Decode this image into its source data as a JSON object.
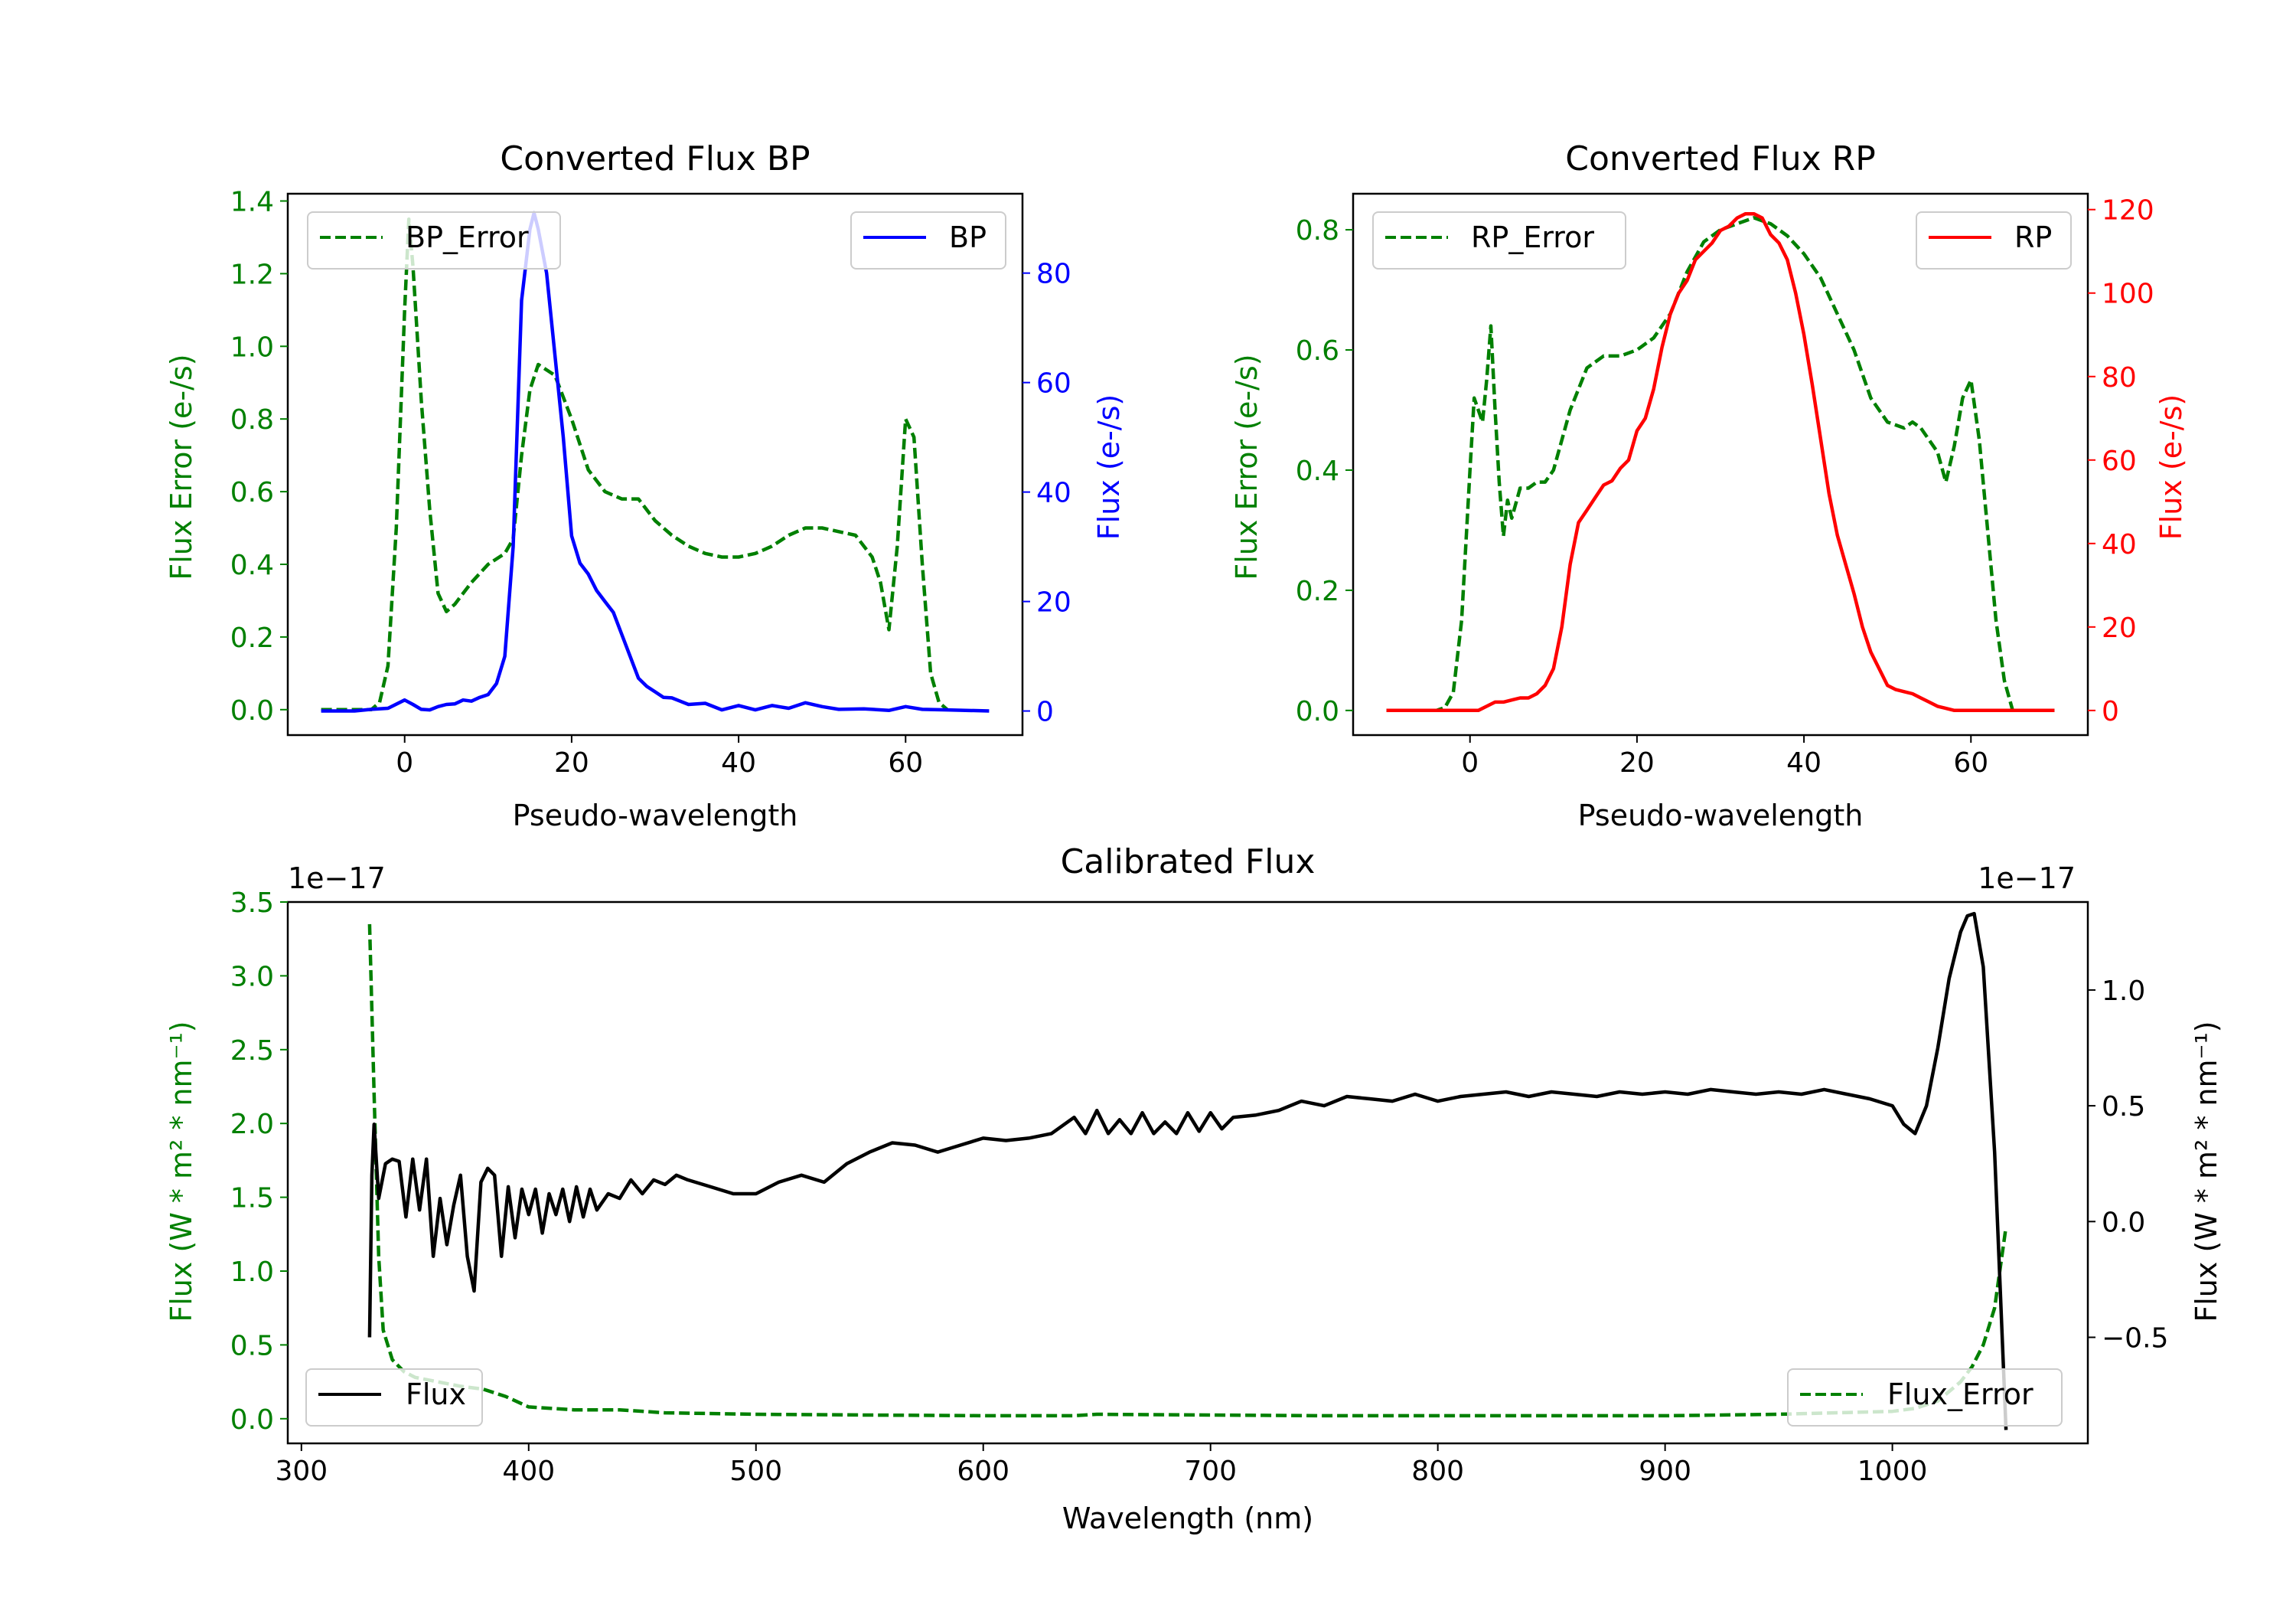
{
  "chart_data": [
    {
      "id": "bp",
      "type": "line",
      "title": "Converted Flux BP",
      "xlabel": "Pseudo-wavelength",
      "ylabel_left": "Flux Error (e-/s)",
      "ylabel_right": "Flux (e-/s)",
      "xlim": [
        -14,
        74
      ],
      "ylim_left": [
        -0.07,
        1.42
      ],
      "ylim_right": [
        -4.4,
        94.5
      ],
      "xticks": [
        0,
        20,
        40,
        60
      ],
      "yticks_left": [
        0.0,
        0.2,
        0.4,
        0.6,
        0.8,
        1.0,
        1.2,
        1.4
      ],
      "yticks_right": [
        0,
        20,
        40,
        60,
        80
      ],
      "legend_left": {
        "label": "BP_Error",
        "location": "upper left"
      },
      "legend_right": {
        "label": "BP",
        "location": "upper right"
      },
      "series": [
        {
          "name": "BP_Error",
          "axis": "left",
          "color": "#008000",
          "style": "dashed",
          "x": [
            -10,
            -4,
            -3,
            -2,
            -1,
            0,
            0.5,
            1,
            2,
            3,
            4,
            5,
            6,
            7,
            8,
            10,
            12,
            13,
            14,
            15,
            16,
            18,
            20,
            22,
            24,
            26,
            28,
            30,
            32,
            34,
            36,
            38,
            40,
            42,
            44,
            46,
            48,
            50,
            52,
            54,
            56,
            57,
            58,
            59,
            60,
            61,
            62,
            63,
            64,
            65
          ],
          "values": [
            0,
            0,
            0.02,
            0.12,
            0.5,
            1.1,
            1.35,
            1.22,
            0.85,
            0.55,
            0.32,
            0.27,
            0.29,
            0.32,
            0.35,
            0.4,
            0.43,
            0.47,
            0.7,
            0.88,
            0.95,
            0.92,
            0.8,
            0.66,
            0.6,
            0.58,
            0.58,
            0.52,
            0.48,
            0.45,
            0.43,
            0.42,
            0.42,
            0.43,
            0.45,
            0.48,
            0.5,
            0.5,
            0.49,
            0.48,
            0.42,
            0.35,
            0.22,
            0.45,
            0.8,
            0.75,
            0.4,
            0.1,
            0.02,
            0
          ]
        },
        {
          "name": "BP",
          "axis": "right",
          "color": "#0000ff",
          "style": "solid",
          "x": [
            -10,
            -6,
            -4,
            -2,
            0,
            1,
            2,
            3,
            4,
            5,
            6,
            7,
            8,
            9,
            10,
            11,
            12,
            13,
            14,
            15,
            15.5,
            16,
            17,
            18,
            19,
            20,
            21,
            22,
            23,
            24,
            25,
            26,
            27,
            28,
            29,
            30,
            31,
            32,
            33,
            34,
            36,
            38,
            40,
            42,
            44,
            46,
            48,
            50,
            52,
            55,
            58,
            60,
            62,
            65,
            70
          ],
          "values": [
            0,
            0,
            0.3,
            0.5,
            2,
            1.2,
            0.3,
            0.2,
            0.8,
            1.2,
            1.3,
            2,
            1.8,
            2.5,
            3,
            5,
            10,
            30,
            75,
            88,
            91,
            88,
            80,
            65,
            50,
            32,
            27,
            25,
            22,
            20,
            18,
            14,
            10,
            6,
            4.5,
            3.5,
            2.5,
            2.4,
            1.8,
            1.2,
            1.4,
            0.2,
            1,
            0.2,
            1,
            0.5,
            1.5,
            0.8,
            0.3,
            0.4,
            0.1,
            0.8,
            0.3,
            0.2,
            0
          ]
        }
      ]
    },
    {
      "id": "rp",
      "type": "line",
      "title": "Converted Flux RP",
      "xlabel": "Pseudo-wavelength",
      "ylabel_left": "Flux Error (e-/s)",
      "ylabel_right": "Flux (e-/s)",
      "xlim": [
        -14,
        74
      ],
      "ylim_left": [
        -0.041,
        0.86
      ],
      "ylim_right": [
        -5.9,
        123.8
      ],
      "xticks": [
        0,
        20,
        40,
        60
      ],
      "yticks_left": [
        0.0,
        0.2,
        0.4,
        0.6,
        0.8
      ],
      "yticks_right": [
        0,
        20,
        40,
        60,
        80,
        100,
        120
      ],
      "legend_left": {
        "label": "RP_Error",
        "location": "upper left"
      },
      "legend_right": {
        "label": "RP",
        "location": "upper right"
      },
      "series": [
        {
          "name": "RP_Error",
          "axis": "left",
          "color": "#008000",
          "style": "dashed",
          "x": [
            -10,
            -4,
            -3,
            -2,
            -1,
            0,
            0.5,
            1,
            1.5,
            2,
            2.5,
            3,
            3.5,
            4,
            4.5,
            5,
            6,
            7,
            8,
            9,
            10,
            12,
            14,
            16,
            18,
            20,
            22,
            24,
            26,
            28,
            30,
            32,
            34,
            36,
            38,
            40,
            42,
            44,
            46,
            48,
            50,
            52,
            53,
            54,
            55,
            56,
            57,
            58,
            59,
            60,
            61,
            62,
            63,
            64,
            65,
            70
          ],
          "values": [
            0,
            0,
            0.005,
            0.03,
            0.15,
            0.4,
            0.52,
            0.5,
            0.48,
            0.55,
            0.64,
            0.5,
            0.38,
            0.29,
            0.35,
            0.32,
            0.37,
            0.37,
            0.38,
            0.38,
            0.4,
            0.5,
            0.57,
            0.59,
            0.59,
            0.6,
            0.62,
            0.66,
            0.73,
            0.78,
            0.8,
            0.81,
            0.82,
            0.81,
            0.79,
            0.76,
            0.72,
            0.66,
            0.6,
            0.52,
            0.48,
            0.47,
            0.48,
            0.47,
            0.45,
            0.43,
            0.38,
            0.44,
            0.52,
            0.55,
            0.45,
            0.3,
            0.15,
            0.05,
            0,
            0
          ]
        },
        {
          "name": "RP",
          "axis": "right",
          "color": "#ff0000",
          "style": "solid",
          "x": [
            -10,
            -2,
            0,
            1,
            2,
            3,
            4,
            5,
            6,
            7,
            8,
            9,
            10,
            11,
            12,
            13,
            14,
            15,
            16,
            17,
            18,
            19,
            20,
            21,
            22,
            23,
            24,
            25,
            26,
            27,
            28,
            29,
            30,
            31,
            32,
            33,
            34,
            35,
            36,
            37,
            38,
            39,
            40,
            41,
            42,
            43,
            44,
            45,
            46,
            47,
            48,
            49,
            50,
            51,
            52,
            53,
            54,
            55,
            56,
            58,
            60,
            62,
            65,
            70
          ],
          "values": [
            0,
            0,
            0,
            0,
            1,
            2,
            2,
            2.5,
            3,
            3,
            4,
            6,
            10,
            20,
            35,
            45,
            48,
            51,
            54,
            55,
            58,
            60,
            67,
            70,
            77,
            87,
            95,
            100,
            103,
            108,
            110,
            112,
            115,
            116,
            118,
            119,
            119,
            118,
            114,
            112,
            108,
            100,
            90,
            78,
            65,
            52,
            42,
            35,
            28,
            20,
            14,
            10,
            6,
            5,
            4.5,
            4,
            3,
            2,
            1,
            0,
            0,
            0,
            0,
            0
          ]
        }
      ]
    },
    {
      "id": "cal",
      "type": "line",
      "title": "Calibrated Flux",
      "xlabel": "Wavelength (nm)",
      "ylabel_left": "Flux (W * m² * nm⁻¹)",
      "ylabel_right": "Flux (W * m² * nm⁻¹)",
      "offset_left": "1e−17",
      "offset_right": "1e−17",
      "xlim": [
        294,
        1086
      ],
      "ylim_left": [
        -0.167,
        3.5
      ],
      "ylim_right": [
        -0.958,
        1.38
      ],
      "xticks": [
        300,
        400,
        500,
        600,
        700,
        800,
        900,
        1000
      ],
      "yticks_left": [
        0.0,
        0.5,
        1.0,
        1.5,
        2.0,
        2.5,
        3.0,
        3.5
      ],
      "yticks_right": [
        -0.5,
        0.0,
        0.5,
        1.0
      ],
      "legend_left": {
        "label": "Flux",
        "location": "lower left"
      },
      "legend_right": {
        "label": "Flux_Error",
        "location": "lower right"
      },
      "series": [
        {
          "name": "Flux_Error",
          "axis": "left",
          "color": "#008000",
          "style": "dashed",
          "x": [
            330,
            332,
            334,
            336,
            340,
            345,
            350,
            360,
            370,
            380,
            390,
            400,
            420,
            440,
            460,
            500,
            550,
            600,
            640,
            650,
            700,
            750,
            800,
            850,
            900,
            950,
            1000,
            1010,
            1020,
            1030,
            1035,
            1040,
            1045,
            1050
          ],
          "values": [
            3.35,
            2.2,
            1.1,
            0.6,
            0.4,
            0.32,
            0.28,
            0.25,
            0.22,
            0.2,
            0.15,
            0.08,
            0.06,
            0.06,
            0.04,
            0.03,
            0.025,
            0.02,
            0.02,
            0.03,
            0.025,
            0.02,
            0.02,
            0.02,
            0.02,
            0.03,
            0.05,
            0.07,
            0.12,
            0.25,
            0.35,
            0.5,
            0.75,
            1.3
          ]
        },
        {
          "name": "Flux",
          "axis": "right",
          "color": "#000000",
          "style": "solid",
          "x": [
            330,
            331,
            332,
            334,
            337,
            340,
            343,
            346,
            349,
            352,
            355,
            358,
            361,
            364,
            367,
            370,
            373,
            376,
            379,
            382,
            385,
            388,
            391,
            394,
            397,
            400,
            403,
            406,
            409,
            412,
            415,
            418,
            421,
            424,
            427,
            430,
            435,
            440,
            445,
            450,
            455,
            460,
            465,
            470,
            480,
            490,
            500,
            510,
            520,
            530,
            540,
            550,
            560,
            570,
            580,
            590,
            600,
            610,
            620,
            630,
            640,
            645,
            650,
            655,
            660,
            665,
            670,
            675,
            680,
            685,
            690,
            695,
            700,
            705,
            710,
            720,
            730,
            740,
            750,
            760,
            770,
            780,
            790,
            800,
            810,
            820,
            830,
            840,
            850,
            860,
            870,
            880,
            890,
            900,
            910,
            920,
            930,
            940,
            950,
            960,
            970,
            980,
            990,
            1000,
            1005,
            1010,
            1015,
            1020,
            1025,
            1030,
            1033,
            1036,
            1040,
            1045,
            1050
          ],
          "values": [
            -0.5,
            0.2,
            0.42,
            0.1,
            0.25,
            0.27,
            0.26,
            0.02,
            0.27,
            0.05,
            0.27,
            -0.15,
            0.1,
            -0.1,
            0.07,
            0.2,
            -0.15,
            -0.3,
            0.17,
            0.23,
            0.2,
            -0.15,
            0.15,
            -0.07,
            0.14,
            0.03,
            0.14,
            -0.05,
            0.12,
            0.03,
            0.14,
            0.0,
            0.15,
            0.02,
            0.14,
            0.05,
            0.12,
            0.1,
            0.18,
            0.12,
            0.18,
            0.16,
            0.2,
            0.18,
            0.15,
            0.12,
            0.12,
            0.17,
            0.2,
            0.17,
            0.25,
            0.3,
            0.34,
            0.33,
            0.3,
            0.33,
            0.36,
            0.35,
            0.36,
            0.38,
            0.45,
            0.38,
            0.48,
            0.38,
            0.44,
            0.38,
            0.47,
            0.38,
            0.43,
            0.38,
            0.47,
            0.39,
            0.47,
            0.4,
            0.45,
            0.46,
            0.48,
            0.52,
            0.5,
            0.54,
            0.53,
            0.52,
            0.55,
            0.52,
            0.54,
            0.55,
            0.56,
            0.54,
            0.56,
            0.55,
            0.54,
            0.56,
            0.55,
            0.56,
            0.55,
            0.57,
            0.56,
            0.55,
            0.56,
            0.55,
            0.57,
            0.55,
            0.53,
            0.5,
            0.42,
            0.38,
            0.5,
            0.75,
            1.05,
            1.25,
            1.32,
            1.33,
            1.1,
            0.3,
            -0.9
          ]
        }
      ]
    }
  ]
}
